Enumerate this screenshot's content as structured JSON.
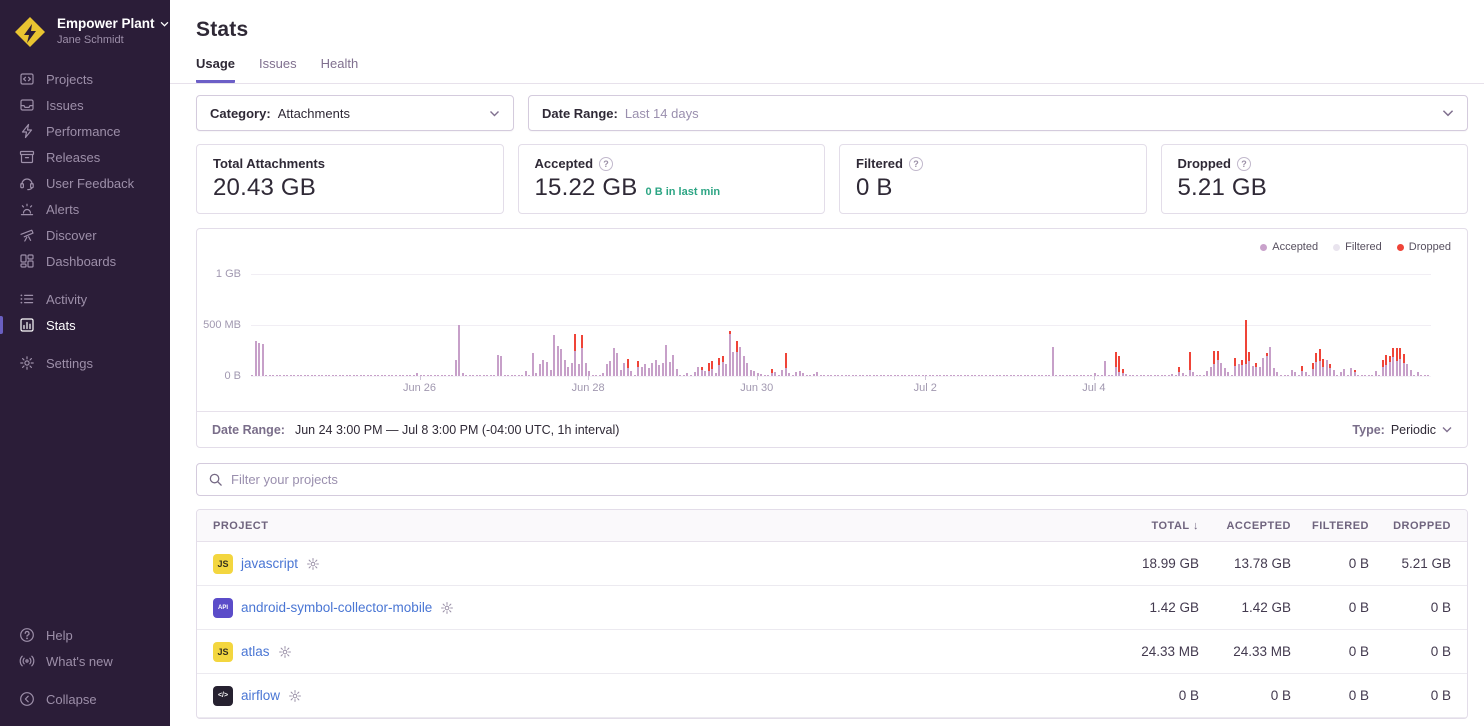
{
  "sidebar": {
    "org": {
      "name": "Empower Plant",
      "user": "Jane Schmidt"
    },
    "primary": [
      {
        "label": "Projects",
        "icon": "projects-icon"
      },
      {
        "label": "Issues",
        "icon": "issues-icon"
      },
      {
        "label": "Performance",
        "icon": "performance-icon"
      },
      {
        "label": "Releases",
        "icon": "releases-icon"
      },
      {
        "label": "User Feedback",
        "icon": "user-feedback-icon"
      },
      {
        "label": "Alerts",
        "icon": "alerts-icon"
      },
      {
        "label": "Discover",
        "icon": "discover-icon"
      },
      {
        "label": "Dashboards",
        "icon": "dashboards-icon"
      }
    ],
    "secondary": [
      {
        "label": "Activity",
        "icon": "activity-icon"
      },
      {
        "label": "Stats",
        "icon": "stats-icon",
        "active": true
      }
    ],
    "tertiary": [
      {
        "label": "Settings",
        "icon": "settings-icon"
      }
    ],
    "footer": [
      {
        "label": "Help",
        "icon": "help-icon"
      },
      {
        "label": "What's new",
        "icon": "whats-new-icon"
      }
    ],
    "collapse": [
      {
        "label": "Collapse",
        "icon": "collapse-icon"
      }
    ]
  },
  "header": {
    "title": "Stats",
    "tabs": [
      {
        "label": "Usage",
        "active": true
      },
      {
        "label": "Issues",
        "active": false
      },
      {
        "label": "Health",
        "active": false
      }
    ]
  },
  "filters": {
    "category_label": "Category:",
    "category_value": "Attachments",
    "date_range_label": "Date Range:",
    "date_range_value": "Last 14 days"
  },
  "cards": [
    {
      "title": "Total Attachments",
      "value": "20.43 GB",
      "help": false,
      "trend": ""
    },
    {
      "title": "Accepted",
      "value": "15.22 GB",
      "help": true,
      "trend": "0 B in last min"
    },
    {
      "title": "Filtered",
      "value": "0 B",
      "help": true,
      "trend": ""
    },
    {
      "title": "Dropped",
      "value": "5.21 GB",
      "help": true,
      "trend": ""
    }
  ],
  "chart_data": {
    "type": "stacked-bar",
    "interval": "1h",
    "unit": "MB",
    "n_bars": 336,
    "baseline_mb": 4,
    "ylim": [
      0,
      1024
    ],
    "y_ticks": [
      {
        "label": "1 GB",
        "value": 1024
      },
      {
        "label": "500 MB",
        "value": 500
      },
      {
        "label": "0 B",
        "value": 0
      }
    ],
    "x_ticks": [
      {
        "label": "Jun 26",
        "pos": 0.1428
      },
      {
        "label": "Jun 28",
        "pos": 0.2857
      },
      {
        "label": "Jun 30",
        "pos": 0.4286
      },
      {
        "label": "Jul 2",
        "pos": 0.5714
      },
      {
        "label": "Jul 4",
        "pos": 0.7143
      }
    ],
    "legend": [
      {
        "label": "Accepted",
        "color": "#c9a2cb"
      },
      {
        "label": "Filtered",
        "color": "#e9e4ee"
      },
      {
        "label": "Dropped",
        "color": "#ef4438"
      }
    ],
    "points": [
      [
        1,
        350,
        0
      ],
      [
        2,
        335,
        0
      ],
      [
        3,
        325,
        0
      ],
      [
        47,
        35,
        0
      ],
      [
        58,
        160,
        0
      ],
      [
        59,
        510,
        0
      ],
      [
        60,
        28,
        0
      ],
      [
        70,
        215,
        0
      ],
      [
        71,
        200,
        0
      ],
      [
        78,
        55,
        0
      ],
      [
        80,
        230,
        0
      ],
      [
        81,
        30,
        0
      ],
      [
        82,
        120,
        0
      ],
      [
        83,
        165,
        0
      ],
      [
        84,
        140,
        0
      ],
      [
        85,
        60,
        0
      ],
      [
        86,
        415,
        0
      ],
      [
        87,
        300,
        0
      ],
      [
        88,
        270,
        0
      ],
      [
        89,
        160,
        0
      ],
      [
        90,
        95,
        0
      ],
      [
        91,
        130,
        0
      ],
      [
        92,
        250,
        170
      ],
      [
        93,
        120,
        0
      ],
      [
        94,
        280,
        130
      ],
      [
        95,
        135,
        0
      ],
      [
        96,
        50,
        0
      ],
      [
        100,
        30,
        0
      ],
      [
        101,
        125,
        0
      ],
      [
        102,
        150,
        0
      ],
      [
        103,
        285,
        0
      ],
      [
        104,
        230,
        0
      ],
      [
        105,
        60,
        0
      ],
      [
        106,
        135,
        0
      ],
      [
        107,
        80,
        95
      ],
      [
        108,
        55,
        0
      ],
      [
        110,
        90,
        60
      ],
      [
        111,
        95,
        0
      ],
      [
        112,
        120,
        0
      ],
      [
        113,
        85,
        0
      ],
      [
        114,
        135,
        0
      ],
      [
        115,
        160,
        0
      ],
      [
        116,
        110,
        0
      ],
      [
        117,
        130,
        0
      ],
      [
        118,
        310,
        0
      ],
      [
        119,
        140,
        0
      ],
      [
        120,
        210,
        0
      ],
      [
        121,
        75,
        0
      ],
      [
        124,
        35,
        0
      ],
      [
        126,
        40,
        0
      ],
      [
        127,
        90,
        0
      ],
      [
        128,
        60,
        35
      ],
      [
        129,
        55,
        0
      ],
      [
        130,
        50,
        80
      ],
      [
        131,
        70,
        80
      ],
      [
        132,
        35,
        0
      ],
      [
        133,
        110,
        75
      ],
      [
        134,
        140,
        60
      ],
      [
        135,
        120,
        0
      ],
      [
        136,
        420,
        35
      ],
      [
        137,
        240,
        0
      ],
      [
        138,
        240,
        115
      ],
      [
        139,
        290,
        0
      ],
      [
        140,
        205,
        0
      ],
      [
        141,
        130,
        0
      ],
      [
        142,
        65,
        0
      ],
      [
        143,
        50,
        0
      ],
      [
        144,
        30,
        0
      ],
      [
        145,
        20,
        0
      ],
      [
        148,
        35,
        40
      ],
      [
        149,
        45,
        0
      ],
      [
        151,
        65,
        0
      ],
      [
        152,
        80,
        150
      ],
      [
        153,
        30,
        0
      ],
      [
        155,
        45,
        0
      ],
      [
        156,
        55,
        0
      ],
      [
        157,
        30,
        0
      ],
      [
        160,
        25,
        0
      ],
      [
        161,
        40,
        0
      ],
      [
        228,
        290,
        0
      ],
      [
        240,
        30,
        0
      ],
      [
        243,
        155,
        0
      ],
      [
        246,
        90,
        150
      ],
      [
        247,
        40,
        160
      ],
      [
        248,
        30,
        40
      ],
      [
        249,
        25,
        0
      ],
      [
        262,
        25,
        0
      ],
      [
        264,
        40,
        55
      ],
      [
        265,
        30,
        0
      ],
      [
        267,
        60,
        180
      ],
      [
        268,
        45,
        0
      ],
      [
        272,
        50,
        0
      ],
      [
        273,
        95,
        0
      ],
      [
        274,
        120,
        130
      ],
      [
        275,
        160,
        95
      ],
      [
        276,
        130,
        0
      ],
      [
        277,
        85,
        0
      ],
      [
        278,
        45,
        0
      ],
      [
        280,
        100,
        85
      ],
      [
        281,
        120,
        0
      ],
      [
        282,
        110,
        55
      ],
      [
        283,
        120,
        440
      ],
      [
        284,
        150,
        90
      ],
      [
        285,
        105,
        0
      ],
      [
        286,
        90,
        40
      ],
      [
        287,
        95,
        0
      ],
      [
        288,
        180,
        0
      ],
      [
        289,
        200,
        30
      ],
      [
        290,
        290,
        0
      ],
      [
        291,
        80,
        0
      ],
      [
        292,
        45,
        0
      ],
      [
        296,
        60,
        0
      ],
      [
        297,
        40,
        0
      ],
      [
        299,
        50,
        55
      ],
      [
        300,
        45,
        0
      ],
      [
        302,
        70,
        65
      ],
      [
        303,
        140,
        90
      ],
      [
        304,
        150,
        120
      ],
      [
        305,
        90,
        85
      ],
      [
        306,
        160,
        0
      ],
      [
        307,
        80,
        40
      ],
      [
        308,
        65,
        0
      ],
      [
        310,
        45,
        0
      ],
      [
        311,
        70,
        0
      ],
      [
        313,
        85,
        0
      ],
      [
        314,
        40,
        25
      ],
      [
        320,
        55,
        0
      ],
      [
        322,
        90,
        70
      ],
      [
        323,
        110,
        100
      ],
      [
        324,
        140,
        60
      ],
      [
        325,
        190,
        95
      ],
      [
        326,
        150,
        130
      ],
      [
        327,
        170,
        115
      ],
      [
        328,
        130,
        90
      ],
      [
        329,
        120,
        0
      ],
      [
        330,
        60,
        0
      ],
      [
        332,
        40,
        0
      ]
    ]
  },
  "chart_footer": {
    "label": "Date Range:",
    "value": "Jun 24 3:00 PM — Jul 8 3:00 PM (-04:00 UTC, 1h interval)",
    "type_label": "Type:",
    "type_value": "Periodic"
  },
  "search": {
    "placeholder": "Filter your projects"
  },
  "table": {
    "columns": {
      "project": "PROJECT",
      "total": "TOTAL",
      "accepted": "ACCEPTED",
      "filtered": "FILTERED",
      "dropped": "DROPPED"
    },
    "sort_arrow": "↓",
    "rows": [
      {
        "project": "javascript",
        "badge_text": "JS",
        "badge_bg": "#f3d63f",
        "badge_fg": "#35311f",
        "badge_size": "9px",
        "total": "18.99 GB",
        "accepted": "13.78 GB",
        "filtered": "0 B",
        "dropped": "5.21 GB"
      },
      {
        "project": "android-symbol-collector-mobile",
        "badge_text": "API",
        "badge_bg": "#5b4cc9",
        "badge_fg": "#ffffff",
        "badge_size": "6px",
        "total": "1.42 GB",
        "accepted": "1.42 GB",
        "filtered": "0 B",
        "dropped": "0 B"
      },
      {
        "project": "atlas",
        "badge_text": "JS",
        "badge_bg": "#f3d63f",
        "badge_fg": "#35311f",
        "badge_size": "9px",
        "total": "24.33 MB",
        "accepted": "24.33 MB",
        "filtered": "0 B",
        "dropped": "0 B"
      },
      {
        "project": "airflow",
        "badge_text": "</>",
        "badge_bg": "#262130",
        "badge_fg": "#ffffff",
        "badge_size": "7px",
        "total": "0 B",
        "accepted": "0 B",
        "filtered": "0 B",
        "dropped": "0 B"
      }
    ]
  }
}
